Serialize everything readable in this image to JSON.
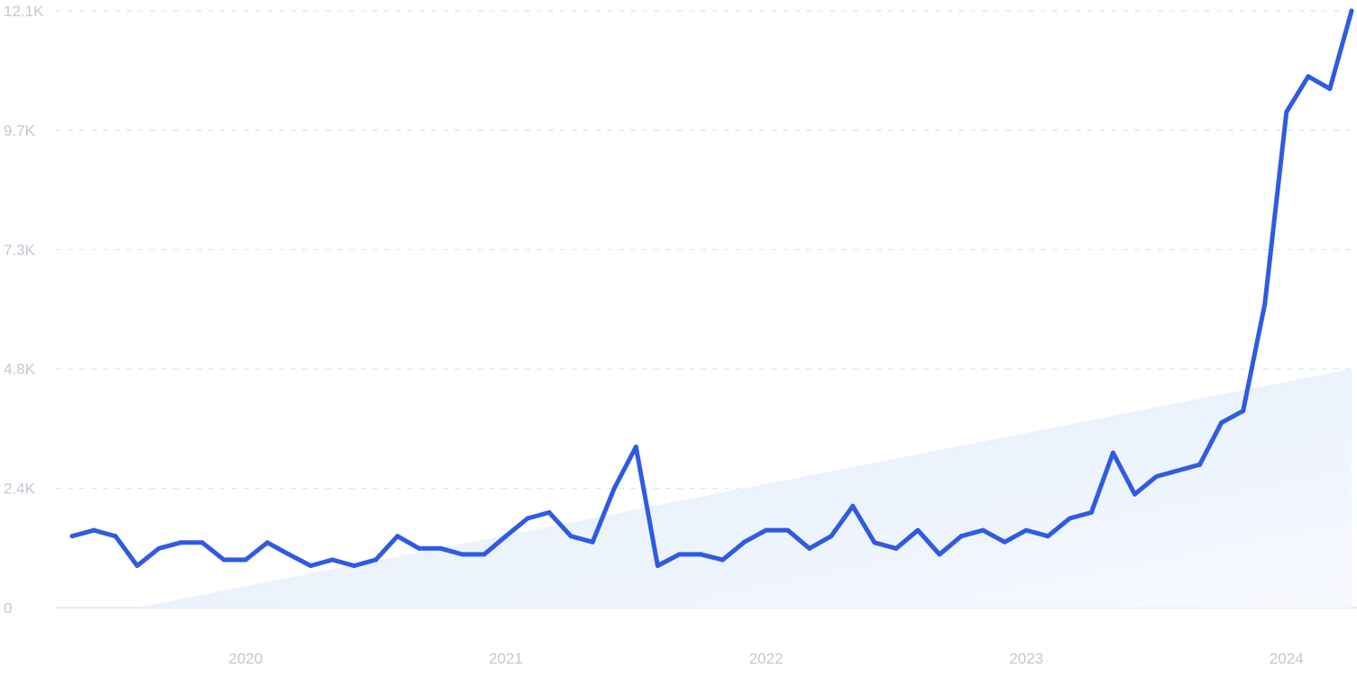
{
  "chart_data": {
    "type": "line",
    "title": "",
    "xlabel": "",
    "ylabel": "",
    "x_tick_labels": [
      "2020",
      "2021",
      "2022",
      "2023",
      "2024"
    ],
    "y_tick_labels": [
      "0",
      "2.4K",
      "4.8K",
      "7.3K",
      "9.7K",
      "12.1K"
    ],
    "y_tick_values": [
      0,
      2420,
      4840,
      7260,
      9680,
      12100
    ],
    "ylim": [
      0,
      12100
    ],
    "xlim": [
      "2019-05",
      "2024-04"
    ],
    "grid": "horizontal dashed",
    "legend": "none",
    "colors": {
      "line": "#2f5be3",
      "area_fill": "#e3effb",
      "grid": "#d3e9ef",
      "ticks": "#c3c8d2"
    },
    "series": [
      {
        "x": [
          "2019-05",
          "2019-06",
          "2019-07",
          "2019-08",
          "2019-09",
          "2019-10",
          "2019-11",
          "2019-12",
          "2020-01",
          "2020-02",
          "2020-03",
          "2020-04",
          "2020-05",
          "2020-06",
          "2020-07",
          "2020-08",
          "2020-09",
          "2020-10",
          "2020-11",
          "2020-12",
          "2021-01",
          "2021-02",
          "2021-03",
          "2021-04",
          "2021-05",
          "2021-06",
          "2021-07",
          "2021-08",
          "2021-09",
          "2021-10",
          "2021-11",
          "2021-12",
          "2022-01",
          "2022-02",
          "2022-03",
          "2022-04",
          "2022-05",
          "2022-06",
          "2022-07",
          "2022-08",
          "2022-09",
          "2022-10",
          "2022-11",
          "2022-12",
          "2023-01",
          "2023-02",
          "2023-03",
          "2023-04",
          "2023-05",
          "2023-06",
          "2023-07",
          "2023-08",
          "2023-09",
          "2023-10",
          "2023-11",
          "2023-12",
          "2024-01",
          "2024-02",
          "2024-03",
          "2024-04"
        ],
        "values": [
          1450,
          1570,
          1450,
          850,
          1200,
          1320,
          1320,
          970,
          970,
          1320,
          1080,
          850,
          970,
          850,
          970,
          1450,
          1200,
          1200,
          1080,
          1080,
          1450,
          1810,
          1930,
          1450,
          1330,
          2420,
          3260,
          850,
          1080,
          1080,
          970,
          1330,
          1570,
          1570,
          1200,
          1450,
          2060,
          1320,
          1200,
          1570,
          1080,
          1450,
          1570,
          1330,
          1570,
          1450,
          1810,
          1930,
          3140,
          2300,
          2660,
          2780,
          2900,
          3750,
          3990,
          6160,
          10050,
          10770,
          10520,
          12100
        ]
      },
      {
        "type": "area",
        "x": [
          "2019-08",
          "2024-04"
        ],
        "values": [
          0,
          4840
        ]
      }
    ]
  }
}
